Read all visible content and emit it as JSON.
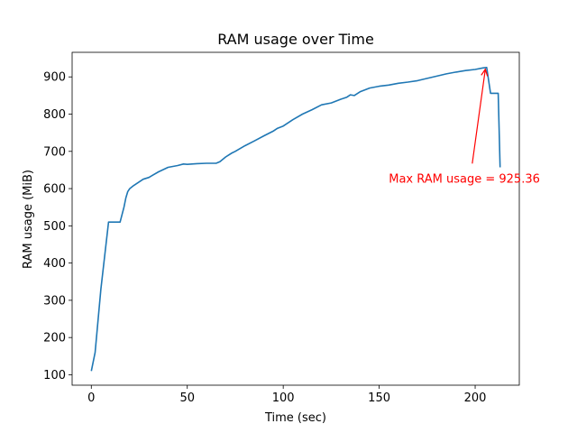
{
  "chart_data": {
    "type": "line",
    "title": "RAM usage over Time",
    "xlabel": "Time (sec)",
    "ylabel": "RAM usage (MiB)",
    "xlim": [
      -10,
      223
    ],
    "ylim": [
      72,
      966
    ],
    "xticks": [
      0,
      50,
      100,
      150,
      200
    ],
    "yticks": [
      100,
      200,
      300,
      400,
      500,
      600,
      700,
      800,
      900
    ],
    "grid": false,
    "line_color": "#1f77b4",
    "annotation_color": "#ff0000",
    "series": [
      {
        "x": [
          0,
          2,
          5,
          9,
          10,
          15,
          17,
          18,
          19,
          20,
          22,
          25,
          27,
          30,
          32,
          35,
          40,
          45,
          48,
          50,
          55,
          60,
          65,
          67,
          70,
          73,
          75,
          80,
          85,
          90,
          95,
          97,
          100,
          105,
          110,
          115,
          120,
          125,
          127,
          130,
          133,
          135,
          137,
          140,
          145,
          150,
          155,
          160,
          165,
          170,
          175,
          180,
          185,
          190,
          195,
          200,
          204,
          206,
          208,
          209,
          210,
          212,
          213
        ],
        "y": [
          110,
          160,
          330,
          510,
          510,
          510,
          550,
          575,
          592,
          600,
          608,
          618,
          625,
          630,
          636,
          645,
          657,
          662,
          666,
          665,
          667,
          668,
          668,
          672,
          685,
          695,
          700,
          715,
          728,
          742,
          755,
          762,
          768,
          785,
          800,
          812,
          825,
          830,
          834,
          840,
          845,
          852,
          850,
          860,
          870,
          875,
          878,
          883,
          886,
          890,
          896,
          902,
          908,
          913,
          917,
          920,
          924,
          925.36,
          856,
          856,
          856,
          856,
          657
        ]
      }
    ],
    "annotation": {
      "text": "Max RAM usage = 925.36",
      "x": 206,
      "y": 925.36,
      "text_x": 155,
      "text_y": 626
    }
  }
}
